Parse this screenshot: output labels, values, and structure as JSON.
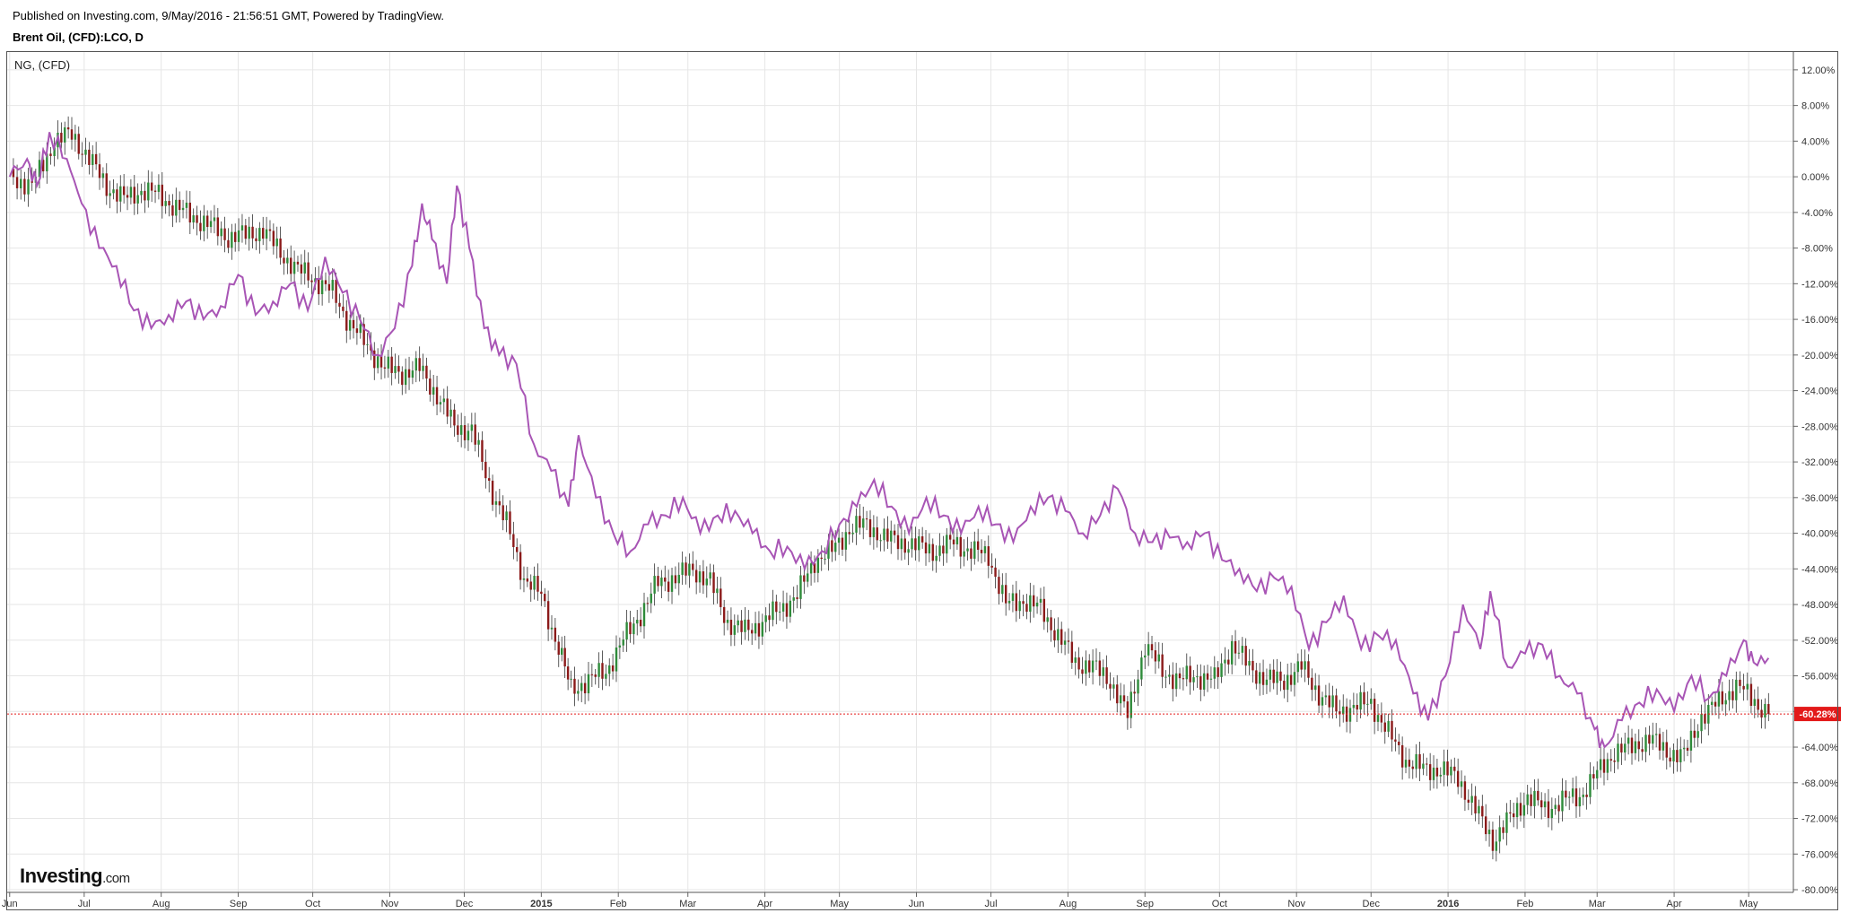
{
  "header": {
    "published": "Published on Investing.com, 9/May/2016 - 21:56:51 GMT, Powered by TradingView.",
    "symbol": "Brent Oil, (CFD):LCO, D"
  },
  "legend": {
    "compare_label": "NG,  (CFD)"
  },
  "logo": {
    "brand": "Investing",
    "suffix": ".com"
  },
  "last_value_label": "-60.28%",
  "colors": {
    "up_candle": "#2e8b3a",
    "down_candle": "#8b1a1a",
    "compare_line": "#a855b5",
    "last_line": "#e31a1a",
    "grid": "#e6e6e6"
  },
  "chart_data": {
    "type": "line",
    "title": "Brent Oil, (CFD):LCO, D",
    "x_tick_labels": [
      "Jun",
      "Jul",
      "Aug",
      "Sep",
      "Oct",
      "Nov",
      "Dec",
      "2015",
      "Feb",
      "Mar",
      "Apr",
      "May",
      "Jun",
      "Jul",
      "Aug",
      "Sep",
      "Oct",
      "Nov",
      "Dec",
      "2016",
      "Feb",
      "Mar",
      "Apr",
      "May"
    ],
    "x_tick_dates": [
      "2014-06-01",
      "2014-07-01",
      "2014-08-01",
      "2014-09-01",
      "2014-10-01",
      "2014-11-01",
      "2014-12-01",
      "2015-01-01",
      "2015-02-01",
      "2015-03-01",
      "2015-04-01",
      "2015-05-01",
      "2015-06-01",
      "2015-07-01",
      "2015-08-01",
      "2015-09-01",
      "2015-10-01",
      "2015-11-01",
      "2015-12-01",
      "2016-01-01",
      "2016-02-01",
      "2016-03-01",
      "2016-04-01",
      "2016-05-01"
    ],
    "x_range": [
      "2014-05-31",
      "2016-05-19"
    ],
    "y_unit": "%",
    "y_ticks": [
      12,
      8,
      4,
      0,
      -4,
      -8,
      -12,
      -16,
      -20,
      -24,
      -28,
      -32,
      -36,
      -40,
      -44,
      -48,
      -52,
      -56,
      -60,
      -64,
      -68,
      -72,
      -76,
      -80
    ],
    "y_tick_labels": [
      "12.00%",
      "8.00%",
      "4.00%",
      "0.00%",
      "-4.00%",
      "-8.00%",
      "-12.00%",
      "-16.00%",
      "-20.00%",
      "-24.00%",
      "-28.00%",
      "-32.00%",
      "-36.00%",
      "-40.00%",
      "-44.00%",
      "-48.00%",
      "-52.00%",
      "-56.00%",
      "-60.28%",
      "-64.00%",
      "-68.00%",
      "-72.00%",
      "-76.00%",
      "-80.00%"
    ],
    "y_range": [
      -80.3,
      14.0
    ],
    "grid": true,
    "series": [
      {
        "name": "Brent Oil, (CFD):LCO, D",
        "style": "candlestick",
        "points": [
          {
            "x": "2014-06-01",
            "y": 0.0
          },
          {
            "x": "2014-06-10",
            "y": -1.0
          },
          {
            "x": "2014-06-19",
            "y": 4.0
          },
          {
            "x": "2014-06-26",
            "y": 4.8
          },
          {
            "x": "2014-07-03",
            "y": 2.0
          },
          {
            "x": "2014-07-10",
            "y": -1.0
          },
          {
            "x": "2014-07-17",
            "y": -2.5
          },
          {
            "x": "2014-07-24",
            "y": -1.5
          },
          {
            "x": "2014-07-31",
            "y": -2.0
          },
          {
            "x": "2014-08-07",
            "y": -3.5
          },
          {
            "x": "2014-08-14",
            "y": -4.5
          },
          {
            "x": "2014-08-21",
            "y": -5.5
          },
          {
            "x": "2014-08-28",
            "y": -6.8
          },
          {
            "x": "2014-09-04",
            "y": -6.5
          },
          {
            "x": "2014-09-11",
            "y": -6.0
          },
          {
            "x": "2014-09-18",
            "y": -8.5
          },
          {
            "x": "2014-09-25",
            "y": -10.5
          },
          {
            "x": "2014-10-02",
            "y": -11.5
          },
          {
            "x": "2014-10-09",
            "y": -13.0
          },
          {
            "x": "2014-10-16",
            "y": -16.5
          },
          {
            "x": "2014-10-23",
            "y": -19.0
          },
          {
            "x": "2014-10-30",
            "y": -21.5
          },
          {
            "x": "2014-11-06",
            "y": -22.0
          },
          {
            "x": "2014-11-13",
            "y": -21.5
          },
          {
            "x": "2014-11-20",
            "y": -24.5
          },
          {
            "x": "2014-11-27",
            "y": -28.0
          },
          {
            "x": "2014-12-04",
            "y": -28.5
          },
          {
            "x": "2014-12-11",
            "y": -34.5
          },
          {
            "x": "2014-12-18",
            "y": -39.0
          },
          {
            "x": "2014-12-25",
            "y": -45.0
          },
          {
            "x": "2015-01-01",
            "y": -47.0
          },
          {
            "x": "2015-01-08",
            "y": -53.0
          },
          {
            "x": "2015-01-13",
            "y": -57.5
          },
          {
            "x": "2015-01-20",
            "y": -56.5
          },
          {
            "x": "2015-01-27",
            "y": -55.5
          },
          {
            "x": "2015-02-03",
            "y": -52.0
          },
          {
            "x": "2015-02-10",
            "y": -49.0
          },
          {
            "x": "2015-02-17",
            "y": -45.5
          },
          {
            "x": "2015-02-24",
            "y": -45.0
          },
          {
            "x": "2015-03-03",
            "y": -44.0
          },
          {
            "x": "2015-03-10",
            "y": -45.5
          },
          {
            "x": "2015-03-17",
            "y": -50.0
          },
          {
            "x": "2015-03-24",
            "y": -51.0
          },
          {
            "x": "2015-03-31",
            "y": -50.0
          },
          {
            "x": "2015-04-07",
            "y": -48.5
          },
          {
            "x": "2015-04-14",
            "y": -47.0
          },
          {
            "x": "2015-04-21",
            "y": -43.0
          },
          {
            "x": "2015-04-28",
            "y": -42.0
          },
          {
            "x": "2015-05-05",
            "y": -39.5
          },
          {
            "x": "2015-05-12",
            "y": -39.0
          },
          {
            "x": "2015-05-19",
            "y": -40.5
          },
          {
            "x": "2015-05-26",
            "y": -41.0
          },
          {
            "x": "2015-06-02",
            "y": -41.5
          },
          {
            "x": "2015-06-09",
            "y": -42.0
          },
          {
            "x": "2015-06-16",
            "y": -41.0
          },
          {
            "x": "2015-06-23",
            "y": -42.0
          },
          {
            "x": "2015-06-30",
            "y": -42.5
          },
          {
            "x": "2015-07-07",
            "y": -48.0
          },
          {
            "x": "2015-07-14",
            "y": -47.5
          },
          {
            "x": "2015-07-21",
            "y": -48.5
          },
          {
            "x": "2015-07-28",
            "y": -51.5
          },
          {
            "x": "2015-08-04",
            "y": -54.5
          },
          {
            "x": "2015-08-11",
            "y": -55.0
          },
          {
            "x": "2015-08-18",
            "y": -56.5
          },
          {
            "x": "2015-08-25",
            "y": -60.5
          },
          {
            "x": "2015-09-01",
            "y": -52.5
          },
          {
            "x": "2015-09-08",
            "y": -55.5
          },
          {
            "x": "2015-09-15",
            "y": -56.5
          },
          {
            "x": "2015-09-22",
            "y": -56.0
          },
          {
            "x": "2015-09-29",
            "y": -56.5
          },
          {
            "x": "2015-10-06",
            "y": -52.5
          },
          {
            "x": "2015-10-13",
            "y": -55.0
          },
          {
            "x": "2015-10-20",
            "y": -56.5
          },
          {
            "x": "2015-10-27",
            "y": -56.5
          },
          {
            "x": "2015-11-03",
            "y": -55.0
          },
          {
            "x": "2015-11-10",
            "y": -58.0
          },
          {
            "x": "2015-11-17",
            "y": -60.0
          },
          {
            "x": "2015-11-24",
            "y": -59.5
          },
          {
            "x": "2015-12-01",
            "y": -59.0
          },
          {
            "x": "2015-12-08",
            "y": -62.5
          },
          {
            "x": "2015-12-15",
            "y": -65.5
          },
          {
            "x": "2015-12-22",
            "y": -66.5
          },
          {
            "x": "2015-12-29",
            "y": -66.5
          },
          {
            "x": "2016-01-05",
            "y": -67.5
          },
          {
            "x": "2016-01-12",
            "y": -71.0
          },
          {
            "x": "2016-01-19",
            "y": -74.5
          },
          {
            "x": "2016-01-26",
            "y": -72.0
          },
          {
            "x": "2016-02-02",
            "y": -69.5
          },
          {
            "x": "2016-02-09",
            "y": -71.0
          },
          {
            "x": "2016-02-16",
            "y": -70.0
          },
          {
            "x": "2016-02-23",
            "y": -69.5
          },
          {
            "x": "2016-03-01",
            "y": -67.0
          },
          {
            "x": "2016-03-08",
            "y": -64.5
          },
          {
            "x": "2016-03-15",
            "y": -64.0
          },
          {
            "x": "2016-03-22",
            "y": -63.0
          },
          {
            "x": "2016-03-29",
            "y": -64.5
          },
          {
            "x": "2016-04-05",
            "y": -65.0
          },
          {
            "x": "2016-04-12",
            "y": -60.5
          },
          {
            "x": "2016-04-19",
            "y": -59.0
          },
          {
            "x": "2016-04-26",
            "y": -57.0
          },
          {
            "x": "2016-05-02",
            "y": -58.5
          },
          {
            "x": "2016-05-09",
            "y": -60.28
          }
        ]
      },
      {
        "name": "NG,  (CFD)",
        "style": "line",
        "points": [
          {
            "x": "2014-06-01",
            "y": 0.0
          },
          {
            "x": "2014-06-08",
            "y": 2.0
          },
          {
            "x": "2014-06-12",
            "y": -1.0
          },
          {
            "x": "2014-06-17",
            "y": 5.0
          },
          {
            "x": "2014-06-24",
            "y": 2.0
          },
          {
            "x": "2014-06-30",
            "y": -3.0
          },
          {
            "x": "2014-07-07",
            "y": -8.0
          },
          {
            "x": "2014-07-14",
            "y": -10.0
          },
          {
            "x": "2014-07-21",
            "y": -15.0
          },
          {
            "x": "2014-07-28",
            "y": -17.0
          },
          {
            "x": "2014-08-04",
            "y": -15.5
          },
          {
            "x": "2014-08-11",
            "y": -14.0
          },
          {
            "x": "2014-08-18",
            "y": -16.0
          },
          {
            "x": "2014-08-25",
            "y": -14.5
          },
          {
            "x": "2014-09-01",
            "y": -11.0
          },
          {
            "x": "2014-09-08",
            "y": -15.5
          },
          {
            "x": "2014-09-15",
            "y": -14.0
          },
          {
            "x": "2014-09-22",
            "y": -12.0
          },
          {
            "x": "2014-09-29",
            "y": -15.0
          },
          {
            "x": "2014-10-06",
            "y": -9.0
          },
          {
            "x": "2014-10-13",
            "y": -13.0
          },
          {
            "x": "2014-10-20",
            "y": -16.0
          },
          {
            "x": "2014-10-27",
            "y": -20.0
          },
          {
            "x": "2014-11-03",
            "y": -17.0
          },
          {
            "x": "2014-11-10",
            "y": -10.0
          },
          {
            "x": "2014-11-14",
            "y": -3.0
          },
          {
            "x": "2014-11-18",
            "y": -7.0
          },
          {
            "x": "2014-11-24",
            "y": -12.0
          },
          {
            "x": "2014-11-28",
            "y": -1.0
          },
          {
            "x": "2014-12-03",
            "y": -8.0
          },
          {
            "x": "2014-12-09",
            "y": -17.0
          },
          {
            "x": "2014-12-15",
            "y": -20.0
          },
          {
            "x": "2014-12-22",
            "y": -21.0
          },
          {
            "x": "2014-12-29",
            "y": -30.0
          },
          {
            "x": "2015-01-05",
            "y": -33.0
          },
          {
            "x": "2015-01-12",
            "y": -37.0
          },
          {
            "x": "2015-01-16",
            "y": -29.0
          },
          {
            "x": "2015-01-23",
            "y": -36.0
          },
          {
            "x": "2015-01-30",
            "y": -40.0
          },
          {
            "x": "2015-02-06",
            "y": -42.0
          },
          {
            "x": "2015-02-13",
            "y": -39.0
          },
          {
            "x": "2015-02-20",
            "y": -38.0
          },
          {
            "x": "2015-02-27",
            "y": -36.0
          },
          {
            "x": "2015-03-06",
            "y": -40.0
          },
          {
            "x": "2015-03-13",
            "y": -38.0
          },
          {
            "x": "2015-03-20",
            "y": -37.5
          },
          {
            "x": "2015-03-27",
            "y": -40.0
          },
          {
            "x": "2015-04-03",
            "y": -42.0
          },
          {
            "x": "2015-04-10",
            "y": -41.5
          },
          {
            "x": "2015-04-17",
            "y": -44.0
          },
          {
            "x": "2015-04-24",
            "y": -42.0
          },
          {
            "x": "2015-05-01",
            "y": -39.0
          },
          {
            "x": "2015-05-08",
            "y": -37.0
          },
          {
            "x": "2015-05-15",
            "y": -34.0
          },
          {
            "x": "2015-05-22",
            "y": -37.0
          },
          {
            "x": "2015-05-29",
            "y": -40.0
          },
          {
            "x": "2015-06-05",
            "y": -36.0
          },
          {
            "x": "2015-06-12",
            "y": -38.0
          },
          {
            "x": "2015-06-19",
            "y": -40.0
          },
          {
            "x": "2015-06-26",
            "y": -37.0
          },
          {
            "x": "2015-07-03",
            "y": -39.0
          },
          {
            "x": "2015-07-10",
            "y": -41.0
          },
          {
            "x": "2015-07-17",
            "y": -37.0
          },
          {
            "x": "2015-07-24",
            "y": -36.0
          },
          {
            "x": "2015-07-31",
            "y": -37.5
          },
          {
            "x": "2015-08-07",
            "y": -40.0
          },
          {
            "x": "2015-08-14",
            "y": -38.0
          },
          {
            "x": "2015-08-21",
            "y": -35.0
          },
          {
            "x": "2015-08-28",
            "y": -40.0
          },
          {
            "x": "2015-09-04",
            "y": -41.0
          },
          {
            "x": "2015-09-11",
            "y": -40.5
          },
          {
            "x": "2015-09-18",
            "y": -41.0
          },
          {
            "x": "2015-09-25",
            "y": -40.0
          },
          {
            "x": "2015-10-02",
            "y": -43.0
          },
          {
            "x": "2015-10-09",
            "y": -44.0
          },
          {
            "x": "2015-10-16",
            "y": -46.5
          },
          {
            "x": "2015-10-23",
            "y": -45.0
          },
          {
            "x": "2015-10-30",
            "y": -46.0
          },
          {
            "x": "2015-11-06",
            "y": -53.0
          },
          {
            "x": "2015-11-13",
            "y": -50.0
          },
          {
            "x": "2015-11-20",
            "y": -47.0
          },
          {
            "x": "2015-11-27",
            "y": -53.0
          },
          {
            "x": "2015-12-04",
            "y": -51.5
          },
          {
            "x": "2015-12-11",
            "y": -52.0
          },
          {
            "x": "2015-12-18",
            "y": -58.0
          },
          {
            "x": "2015-12-24",
            "y": -61.0
          },
          {
            "x": "2015-12-31",
            "y": -56.0
          },
          {
            "x": "2016-01-07",
            "y": -48.0
          },
          {
            "x": "2016-01-14",
            "y": -53.0
          },
          {
            "x": "2016-01-18",
            "y": -46.5
          },
          {
            "x": "2016-01-25",
            "y": -55.0
          },
          {
            "x": "2016-02-01",
            "y": -53.5
          },
          {
            "x": "2016-02-08",
            "y": -52.5
          },
          {
            "x": "2016-02-15",
            "y": -56.0
          },
          {
            "x": "2016-02-22",
            "y": -58.0
          },
          {
            "x": "2016-02-29",
            "y": -62.0
          },
          {
            "x": "2016-03-04",
            "y": -64.0
          },
          {
            "x": "2016-03-11",
            "y": -61.0
          },
          {
            "x": "2016-03-18",
            "y": -59.0
          },
          {
            "x": "2016-03-25",
            "y": -57.5
          },
          {
            "x": "2016-04-01",
            "y": -60.0
          },
          {
            "x": "2016-04-08",
            "y": -56.0
          },
          {
            "x": "2016-04-15",
            "y": -58.5
          },
          {
            "x": "2016-04-22",
            "y": -56.0
          },
          {
            "x": "2016-04-29",
            "y": -52.0
          },
          {
            "x": "2016-05-03",
            "y": -54.5
          },
          {
            "x": "2016-05-09",
            "y": -54.0
          }
        ]
      }
    ],
    "last_value": -60.28
  }
}
